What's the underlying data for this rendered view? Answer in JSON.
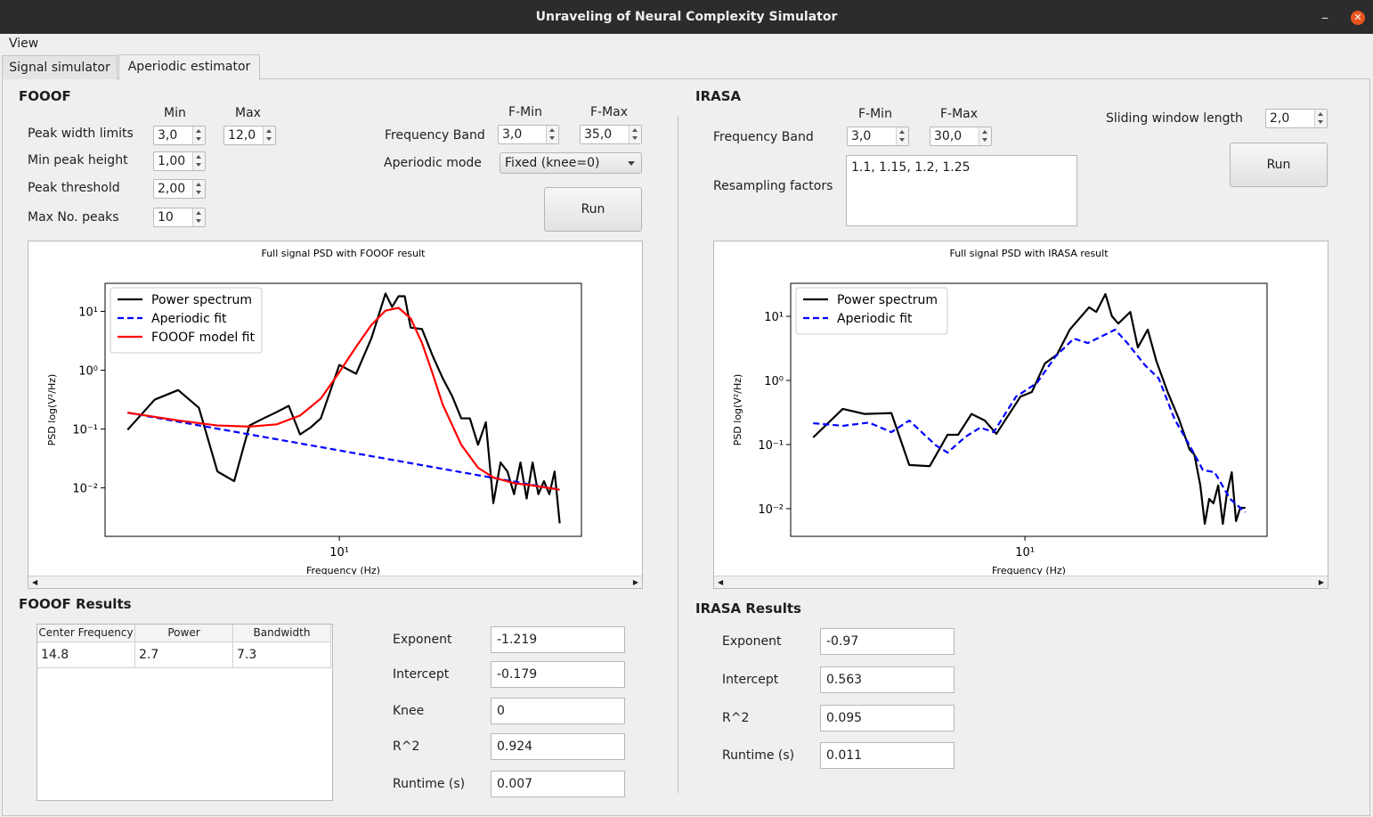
{
  "window": {
    "title": "Unraveling of Neural Complexity Simulator",
    "menu": [
      "View"
    ],
    "tabs": [
      "Signal simulator",
      "Aperiodic estimator"
    ]
  },
  "fooof": {
    "heading": "FOOOF",
    "min_header": "Min",
    "max_header": "Max",
    "peak_width": {
      "label": "Peak width limits",
      "min": "3,0",
      "max": "12,0"
    },
    "min_peak_height": {
      "label": "Min peak height",
      "value": "1,00"
    },
    "peak_threshold": {
      "label": "Peak threshold",
      "value": "2,00"
    },
    "max_peaks": {
      "label": "Max No. peaks",
      "value": "10"
    },
    "band": {
      "label": "Frequency Band",
      "min_header": "F-Min",
      "max_header": "F-Max",
      "min": "3,0",
      "max": "35,0"
    },
    "mode": {
      "label": "Aperiodic mode",
      "value": "Fixed (knee=0)"
    },
    "run": "Run",
    "results_heading": "FOOOF Results",
    "table": {
      "columns": [
        "Center Frequency",
        "Power",
        "Bandwidth"
      ],
      "rows": [
        [
          "14.8",
          "2.7",
          "7.3"
        ]
      ]
    },
    "results": [
      {
        "label": "Exponent",
        "value": "-1.219"
      },
      {
        "label": "Intercept",
        "value": "-0.179"
      },
      {
        "label": "Knee",
        "value": "0"
      },
      {
        "label": "R^2",
        "value": "0.924"
      },
      {
        "label": "Runtime (s)",
        "value": "0.007"
      }
    ]
  },
  "irasa": {
    "heading": "IRASA",
    "band": {
      "label": "Frequency Band",
      "min_header": "F-Min",
      "max_header": "F-Max",
      "min": "3,0",
      "max": "30,0"
    },
    "window_length": {
      "label": "Sliding window length",
      "value": "2,0"
    },
    "run": "Run",
    "resampling": {
      "label": "Resampling factors",
      "value": "1.1, 1.15, 1.2, 1.25"
    },
    "results_heading": "IRASA Results",
    "results": [
      {
        "label": "Exponent",
        "value": "-0.97"
      },
      {
        "label": "Intercept",
        "value": "0.563"
      },
      {
        "label": "R^2",
        "value": "0.095"
      },
      {
        "label": "Runtime (s)",
        "value": "0.011"
      }
    ]
  },
  "chart_data": [
    {
      "type": "line",
      "title": "Full signal PSD with FOOOF result",
      "xlabel": "Frequency (Hz)",
      "ylabel": "PSD log(V²/Hz)",
      "xscale": "log",
      "yscale": "log",
      "xlim": [
        2.64,
        39.6
      ],
      "ylim": [
        0.0015,
        30
      ],
      "xticks": [
        {
          "value": 10,
          "label": "10¹"
        }
      ],
      "yticks": [
        {
          "value": 10,
          "label": "10¹"
        },
        {
          "value": 1,
          "label": "10⁰"
        },
        {
          "value": 0.1,
          "label": "10⁻¹"
        },
        {
          "value": 0.01,
          "label": "10⁻²"
        }
      ],
      "legend": "upper left",
      "series": [
        {
          "name": "Power spectrum",
          "color": "#000000",
          "style": "solid",
          "x": [
            3,
            3.5,
            4,
            4.5,
            5,
            5.5,
            6,
            6.5,
            7,
            7.5,
            8,
            8.5,
            9,
            10,
            11,
            12,
            13,
            13.5,
            14,
            14.5,
            15,
            16,
            17,
            18,
            19,
            20,
            21,
            22,
            23,
            24,
            25,
            26,
            27,
            28,
            29,
            30,
            31,
            32,
            33,
            34,
            35
          ],
          "values": [
            0.097,
            0.316,
            0.46,
            0.23,
            0.019,
            0.013,
            0.115,
            0.152,
            0.194,
            0.248,
            0.081,
            0.107,
            0.152,
            1.23,
            0.87,
            3.5,
            20.1,
            11.9,
            18.1,
            18.1,
            5.3,
            5.0,
            1.75,
            0.73,
            0.36,
            0.152,
            0.152,
            0.054,
            0.13,
            0.0055,
            0.027,
            0.019,
            0.0078,
            0.027,
            0.0066,
            0.027,
            0.0078,
            0.013,
            0.0078,
            0.019,
            0.0025
          ]
        },
        {
          "name": "Aperiodic fit",
          "color": "#0000ff",
          "style": "dashed",
          "x": [
            3,
            35
          ],
          "values": [
            0.19,
            0.0093
          ]
        },
        {
          "name": "FOOOF model fit",
          "color": "#ff0000",
          "style": "solid",
          "x": [
            3,
            4,
            5,
            6,
            7,
            8,
            9,
            10,
            11,
            12,
            13,
            14,
            15,
            16,
            17,
            18,
            20,
            22,
            24,
            27,
            30,
            35
          ],
          "values": [
            0.19,
            0.14,
            0.115,
            0.11,
            0.12,
            0.17,
            0.33,
            0.93,
            2.5,
            5.9,
            10.3,
            11.5,
            7.6,
            2.9,
            0.87,
            0.26,
            0.054,
            0.022,
            0.015,
            0.012,
            0.011,
            0.0093
          ]
        }
      ]
    },
    {
      "type": "line",
      "title": "Full signal PSD with IRASA result",
      "xlabel": "Frequency (Hz)",
      "ylabel": "PSD log(V²/Hz)",
      "xscale": "log",
      "yscale": "log",
      "xlim": [
        2.64,
        39.6
      ],
      "ylim": [
        0.0037,
        32.7
      ],
      "xticks": [
        {
          "value": 10,
          "label": "10¹"
        }
      ],
      "yticks": [
        {
          "value": 10,
          "label": "10¹"
        },
        {
          "value": 1,
          "label": "10⁰"
        },
        {
          "value": 0.1,
          "label": "10⁻¹"
        },
        {
          "value": 0.01,
          "label": "10⁻²"
        }
      ],
      "legend": "upper left",
      "series": [
        {
          "name": "Power spectrum",
          "color": "#000000",
          "style": "solid",
          "x": [
            3.0,
            3.55,
            4.02,
            4.68,
            5.18,
            5.82,
            6.44,
            6.84,
            7.38,
            7.96,
            8.5,
            9.75,
            10.4,
            11.2,
            12.0,
            12.9,
            14.4,
            15.0,
            15.8,
            16.4,
            17.0,
            18.2,
            19.0,
            20.1,
            21.1,
            22.5,
            24.0,
            25.5,
            26.2,
            27.1,
            27.8,
            28.5,
            29.2,
            30.0,
            30.8,
            31.5,
            32.4,
            33.2,
            34.0,
            35.0
          ],
          "values": [
            0.129,
            0.36,
            0.3,
            0.31,
            0.048,
            0.046,
            0.142,
            0.142,
            0.3,
            0.237,
            0.147,
            0.56,
            0.66,
            1.84,
            2.53,
            6.2,
            13.8,
            11.7,
            22.2,
            10,
            7.7,
            11.7,
            3.27,
            6.2,
            2.02,
            0.66,
            0.25,
            0.083,
            0.07,
            0.023,
            0.0058,
            0.0142,
            0.0121,
            0.023,
            0.0058,
            0.0167,
            0.037,
            0.0064,
            0.0103,
            0.0103
          ]
        },
        {
          "name": "Aperiodic fit",
          "color": "#0000ff",
          "style": "dashed",
          "x": [
            3.0,
            3.55,
            4.12,
            4.68,
            5.18,
            6.03,
            6.44,
            7.14,
            7.76,
            8.37,
            9.51,
            10.7,
            11.9,
            13.2,
            14.3,
            15.4,
            16.7,
            17.9,
            19.8,
            21.4,
            23.4,
            25.5,
            27.5,
            29.4,
            32.1,
            35.0
          ],
          "values": [
            0.215,
            0.196,
            0.22,
            0.156,
            0.237,
            0.097,
            0.075,
            0.133,
            0.184,
            0.156,
            0.56,
            0.91,
            2.37,
            4.5,
            3.83,
            4.8,
            6.2,
            3.83,
            1.72,
            1.07,
            0.25,
            0.097,
            0.04,
            0.037,
            0.0142,
            0.0088
          ]
        }
      ]
    }
  ]
}
